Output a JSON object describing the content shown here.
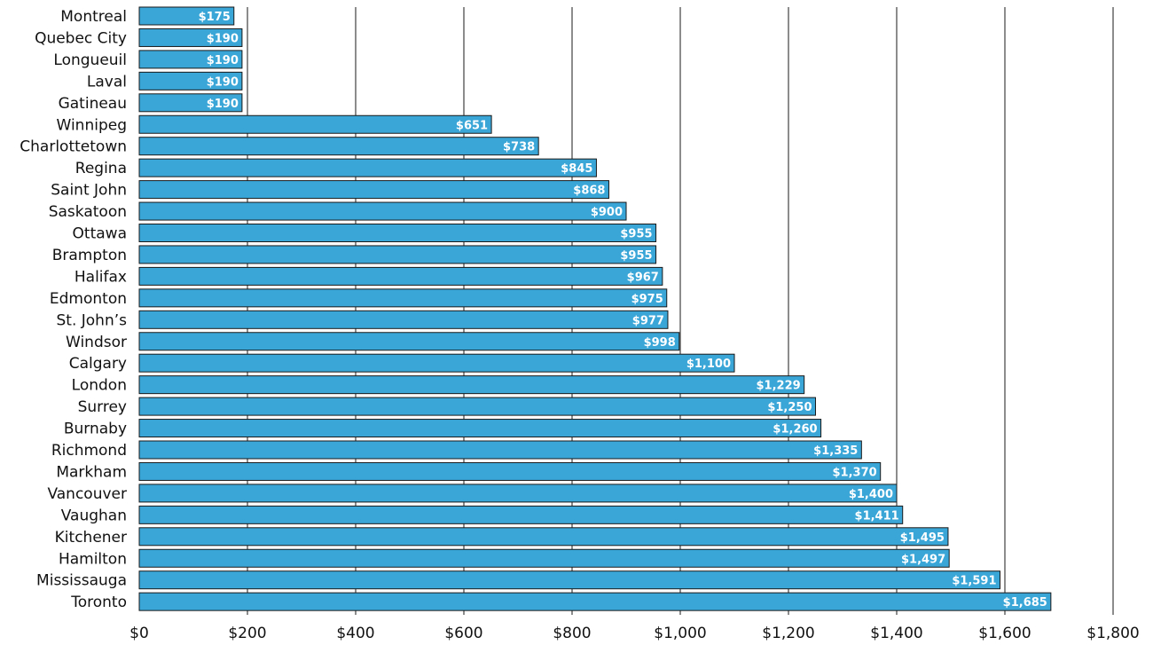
{
  "chart_data": {
    "type": "bar",
    "orientation": "horizontal",
    "title": "",
    "xlabel": "",
    "ylabel": "",
    "xlim": [
      0,
      1800
    ],
    "x_ticks": [
      0,
      200,
      400,
      600,
      800,
      1000,
      1200,
      1400,
      1600,
      1800
    ],
    "x_tick_labels": [
      "$0",
      "$200",
      "$400",
      "$600",
      "$800",
      "$1,000",
      "$1,200",
      "$1,400",
      "$1,600",
      "$1,800"
    ],
    "grid": "vertical",
    "bar_color": "#3aa6d8",
    "categories": [
      "Montreal",
      "Quebec City",
      "Longueuil",
      "Laval",
      "Gatineau",
      "Winnipeg",
      "Charlottetown",
      "Regina",
      "Saint John",
      "Saskatoon",
      "Ottawa",
      "Brampton",
      "Halifax",
      "Edmonton",
      "St. John’s",
      "Windsor",
      "Calgary",
      "London",
      "Surrey",
      "Burnaby",
      "Richmond",
      "Markham",
      "Vancouver",
      "Vaughan",
      "Kitchener",
      "Hamilton",
      "Mississauga",
      "Toronto"
    ],
    "values": [
      175,
      190,
      190,
      190,
      190,
      651,
      738,
      845,
      868,
      900,
      955,
      955,
      967,
      975,
      977,
      998,
      1100,
      1229,
      1250,
      1260,
      1335,
      1370,
      1400,
      1411,
      1495,
      1497,
      1591,
      1685
    ],
    "value_labels": [
      "$175",
      "$190",
      "$190",
      "$190",
      "$190",
      "$651",
      "$738",
      "$845",
      "$868",
      "$900",
      "$955",
      "$955",
      "$967",
      "$975",
      "$977",
      "$998",
      "$1,100",
      "$1,229",
      "$1,250",
      "$1,260",
      "$1,335",
      "$1,370",
      "$1,400",
      "$1,411",
      "$1,495",
      "$1,497",
      "$1,591",
      "$1,685"
    ]
  }
}
